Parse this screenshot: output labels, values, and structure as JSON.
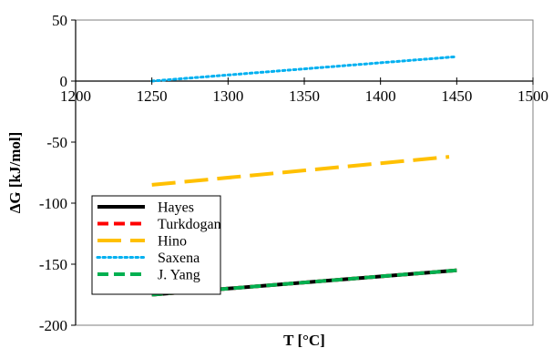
{
  "chart_data": {
    "type": "line",
    "title": "",
    "xlabel": "T [°C]",
    "ylabel": "ΔG [kJ/mol]",
    "xlim": [
      1200,
      1500
    ],
    "ylim": [
      -200,
      50
    ],
    "xticks": [
      1200,
      1250,
      1300,
      1350,
      1400,
      1450,
      1500
    ],
    "xtick_labels": [
      "1200",
      "1250",
      "1300",
      "1350",
      "1400",
      "1450",
      "1500"
    ],
    "yticks": [
      50,
      0,
      -50,
      -100,
      -150,
      -200
    ],
    "ytick_labels": [
      "50",
      "0",
      "-50",
      "-100",
      "-150",
      "-200"
    ],
    "grid": false,
    "legend_position": "lower-left",
    "series": [
      {
        "name": "Hayes",
        "color": "#000000",
        "style": "solid",
        "x": [
          1250,
          1450
        ],
        "y": [
          -175,
          -155
        ]
      },
      {
        "name": "Turkdogan",
        "color": "#ff0000",
        "style": "dashed",
        "x": [
          1250,
          1450
        ],
        "y": [
          -175,
          -155
        ]
      },
      {
        "name": "Hino",
        "color": "#ffc000",
        "style": "longdash",
        "x": [
          1250,
          1445
        ],
        "y": [
          -85,
          -62
        ]
      },
      {
        "name": "Saxena",
        "color": "#00b0f0",
        "style": "dotted",
        "x": [
          1250,
          1450
        ],
        "y": [
          0,
          20
        ]
      },
      {
        "name": "J. Yang",
        "color": "#00b050",
        "style": "dashed",
        "x": [
          1250,
          1450
        ],
        "y": [
          -175,
          -155
        ]
      }
    ]
  }
}
